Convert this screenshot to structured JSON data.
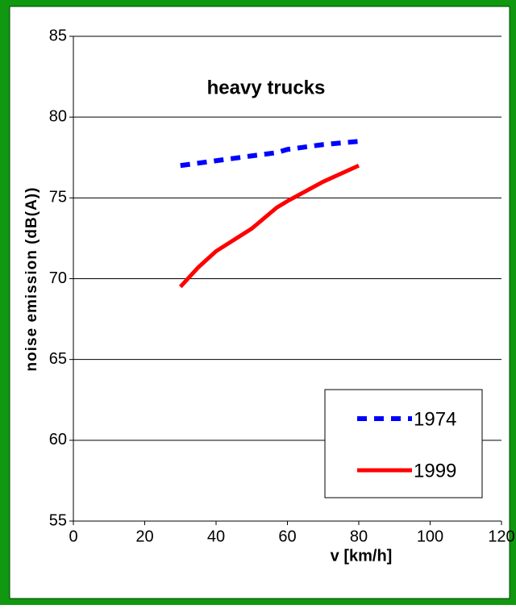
{
  "chart_data": {
    "type": "line",
    "title": "heavy trucks",
    "x_label": "v [km/h]",
    "y_label": "noise emission (dB(A))",
    "xlim": [
      0,
      120
    ],
    "xticks": [
      0,
      20,
      40,
      60,
      80,
      100,
      120
    ],
    "ylim": [
      55,
      85
    ],
    "yticks": [
      55,
      60,
      65,
      70,
      75,
      80,
      85
    ],
    "grid": true,
    "legend": "lower right",
    "series": [
      {
        "name": "1974",
        "color": "#0000ff",
        "style": "dashed",
        "x": [
          30,
          40,
          50,
          57,
          60,
          70,
          80
        ],
        "values": [
          77.0,
          77.3,
          77.6,
          77.8,
          78.0,
          78.3,
          78.5
        ]
      },
      {
        "name": "1999",
        "color": "#ff0000",
        "style": "solid",
        "x": [
          30,
          35,
          40,
          50,
          57,
          60,
          70,
          80
        ],
        "values": [
          69.5,
          70.7,
          71.7,
          73.1,
          74.4,
          74.8,
          76.0,
          77.0
        ]
      }
    ]
  }
}
